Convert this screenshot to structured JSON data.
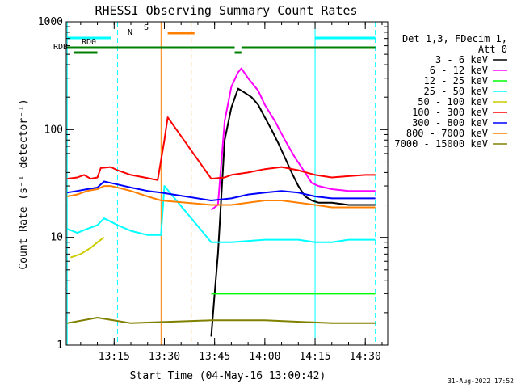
{
  "chart_data": {
    "type": "line",
    "title": "RHESSI Observing Summary Count Rates",
    "xlabel": "Start Time (04-May-16 13:00:42)",
    "ylabel": "Count Rate (s⁻¹ detector⁻¹)",
    "y_scale": "log",
    "ylim": [
      1,
      1000
    ],
    "xlim_minutes_after_13_00_42": [
      0,
      96
    ],
    "y_ticks": [
      {
        "value": 1,
        "label": "1"
      },
      {
        "value": 10,
        "label": "10"
      },
      {
        "value": 100,
        "label": "100"
      },
      {
        "value": 1000,
        "label": "1000"
      }
    ],
    "x_ticks": [
      {
        "label": "13:15",
        "time": "13:15"
      },
      {
        "label": "13:30",
        "time": "13:30"
      },
      {
        "label": "13:45",
        "time": "13:45"
      },
      {
        "label": "14:00",
        "time": "14:00"
      },
      {
        "label": "14:15",
        "time": "14:15"
      },
      {
        "label": "14:30",
        "time": "14:30"
      }
    ],
    "legend_header": [
      "Det 1,3, FDecim 1,",
      "Att 0"
    ],
    "legend_position": "right",
    "series": [
      {
        "name": "3 - 6 keV",
        "color": "#000000",
        "points": [
          [
            "13:44",
            1.2
          ],
          [
            "13:45",
            3
          ],
          [
            "13:46",
            7
          ],
          [
            "13:48",
            80
          ],
          [
            "13:50",
            160
          ],
          [
            "13:52",
            240
          ],
          [
            "13:54",
            220
          ],
          [
            "13:56",
            200
          ],
          [
            "13:58",
            170
          ],
          [
            "14:00",
            130
          ],
          [
            "14:02",
            100
          ],
          [
            "14:04",
            75
          ],
          [
            "14:06",
            55
          ],
          [
            "14:08",
            40
          ],
          [
            "14:10",
            30
          ],
          [
            "14:12",
            24
          ],
          [
            "14:14",
            22
          ],
          [
            "14:16",
            21
          ],
          [
            "14:20",
            21
          ],
          [
            "14:25",
            20
          ],
          [
            "14:30",
            20
          ],
          [
            "14:33",
            20
          ]
        ]
      },
      {
        "name": "6 - 12 keV",
        "color": "#ff00ff",
        "points": [
          [
            "13:44",
            18
          ],
          [
            "13:46",
            20
          ],
          [
            "13:48",
            120
          ],
          [
            "13:50",
            250
          ],
          [
            "13:52",
            340
          ],
          [
            "13:53",
            370
          ],
          [
            "13:55",
            300
          ],
          [
            "13:58",
            230
          ],
          [
            "14:00",
            170
          ],
          [
            "14:03",
            120
          ],
          [
            "14:06",
            80
          ],
          [
            "14:09",
            55
          ],
          [
            "14:12",
            40
          ],
          [
            "14:14",
            32
          ],
          [
            "14:16",
            30
          ],
          [
            "14:20",
            28
          ],
          [
            "14:25",
            27
          ],
          [
            "14:30",
            27
          ],
          [
            "14:33",
            27
          ]
        ]
      },
      {
        "name": "12 - 25 keV",
        "color": "#00ff00",
        "points": [
          [
            "13:44",
            3
          ],
          [
            "14:33",
            3
          ]
        ]
      },
      {
        "name": "25 - 50 keV",
        "color": "#00ffff",
        "points": [
          [
            "13:01",
            12
          ],
          [
            "13:04",
            11
          ],
          [
            "13:07",
            12
          ],
          [
            "13:10",
            13
          ],
          [
            "13:12",
            15
          ],
          [
            "13:14",
            14
          ],
          [
            "13:16",
            13
          ],
          [
            "13:20",
            11.5
          ],
          [
            "13:25",
            10.5
          ],
          [
            "13:29",
            10.5
          ],
          [
            "13:30",
            30
          ],
          [
            "13:44",
            9
          ],
          [
            "13:50",
            9
          ],
          [
            "14:00",
            9.5
          ],
          [
            "14:10",
            9.5
          ],
          [
            "14:15",
            9
          ],
          [
            "14:20",
            9
          ],
          [
            "14:25",
            9.5
          ],
          [
            "14:33",
            9.5
          ]
        ]
      },
      {
        "name": "50 - 100 keV",
        "color": "#cccc00",
        "points": [
          [
            "13:02",
            6.5
          ],
          [
            "13:05",
            7
          ],
          [
            "13:08",
            8
          ],
          [
            "13:10",
            9
          ],
          [
            "13:12",
            10
          ]
        ]
      },
      {
        "name": "100 - 300 keV",
        "color": "#ff0000",
        "points": [
          [
            "13:01",
            35
          ],
          [
            "13:04",
            36
          ],
          [
            "13:06",
            38
          ],
          [
            "13:08",
            35
          ],
          [
            "13:10",
            36
          ],
          [
            "13:11",
            44
          ],
          [
            "13:14",
            45
          ],
          [
            "13:16",
            42
          ],
          [
            "13:20",
            38
          ],
          [
            "13:24",
            36
          ],
          [
            "13:28",
            34
          ],
          [
            "13:30",
            80
          ],
          [
            "13:31",
            130
          ],
          [
            "13:44",
            35
          ],
          [
            "13:48",
            36
          ],
          [
            "13:50",
            38
          ],
          [
            "13:55",
            40
          ],
          [
            "14:00",
            43
          ],
          [
            "14:05",
            45
          ],
          [
            "14:10",
            42
          ],
          [
            "14:15",
            38
          ],
          [
            "14:20",
            36
          ],
          [
            "14:25",
            37
          ],
          [
            "14:30",
            38
          ],
          [
            "14:33",
            38
          ]
        ]
      },
      {
        "name": "300 - 800 keV",
        "color": "#0000ff",
        "points": [
          [
            "13:01",
            26
          ],
          [
            "13:04",
            27
          ],
          [
            "13:07",
            28
          ],
          [
            "13:10",
            29
          ],
          [
            "13:12",
            33
          ],
          [
            "13:14",
            32
          ],
          [
            "13:16",
            31
          ],
          [
            "13:20",
            29
          ],
          [
            "13:25",
            27
          ],
          [
            "13:29",
            26
          ],
          [
            "13:44",
            22
          ],
          [
            "13:50",
            23
          ],
          [
            "13:55",
            25
          ],
          [
            "14:00",
            26
          ],
          [
            "14:05",
            27
          ],
          [
            "14:10",
            26
          ],
          [
            "14:15",
            24
          ],
          [
            "14:20",
            23
          ],
          [
            "14:25",
            23
          ],
          [
            "14:33",
            23
          ]
        ]
      },
      {
        "name": "800 - 7000 keV",
        "color": "#ff8000",
        "points": [
          [
            "13:01",
            24
          ],
          [
            "13:04",
            25
          ],
          [
            "13:07",
            27
          ],
          [
            "13:10",
            28
          ],
          [
            "13:12",
            30
          ],
          [
            "13:14",
            30
          ],
          [
            "13:16",
            29
          ],
          [
            "13:20",
            27
          ],
          [
            "13:25",
            24
          ],
          [
            "13:29",
            22
          ],
          [
            "13:44",
            20
          ],
          [
            "13:50",
            20
          ],
          [
            "13:55",
            21
          ],
          [
            "14:00",
            22
          ],
          [
            "14:05",
            22
          ],
          [
            "14:10",
            21
          ],
          [
            "14:15",
            20
          ],
          [
            "14:20",
            19
          ],
          [
            "14:25",
            19
          ],
          [
            "14:33",
            19
          ]
        ]
      },
      {
        "name": "7000 - 15000 keV",
        "color": "#808000",
        "points": [
          [
            "13:01",
            1.6
          ],
          [
            "13:10",
            1.8
          ],
          [
            "13:20",
            1.6
          ],
          [
            "13:44",
            1.7
          ],
          [
            "14:00",
            1.7
          ],
          [
            "14:20",
            1.6
          ],
          [
            "14:33",
            1.6
          ]
        ]
      }
    ],
    "state_bars": [
      {
        "label": "N",
        "color": "#00ffff",
        "segments": [
          [
            "13:01",
            "13:14"
          ],
          [
            "14:15",
            "14:33"
          ]
        ]
      },
      {
        "label": "S",
        "color": "#ff8000",
        "segments": [
          [
            "13:31",
            "13:39"
          ]
        ]
      },
      {
        "label": "RD0",
        "color": "#008000",
        "segments": [
          [
            "13:01",
            "13:51"
          ],
          [
            "13:53",
            "14:33"
          ]
        ]
      },
      {
        "label": "RDB",
        "color": "#008000",
        "segments": [
          [
            "13:03",
            "13:10"
          ],
          [
            "13:51",
            "13:53"
          ]
        ]
      }
    ],
    "vertical_markers": [
      {
        "time": "13:01",
        "color": "#00ffff",
        "style": "solid"
      },
      {
        "time": "13:16",
        "color": "#00ffff",
        "style": "dashed"
      },
      {
        "time": "13:29",
        "color": "#ff8000",
        "style": "solid"
      },
      {
        "time": "13:38",
        "color": "#ff8000",
        "style": "dashed"
      },
      {
        "time": "14:15",
        "color": "#00ffff",
        "style": "solid"
      },
      {
        "time": "14:33",
        "color": "#00ffff",
        "style": "dashed"
      }
    ],
    "footer_timestamp": "31-Aug-2022 17:52"
  }
}
